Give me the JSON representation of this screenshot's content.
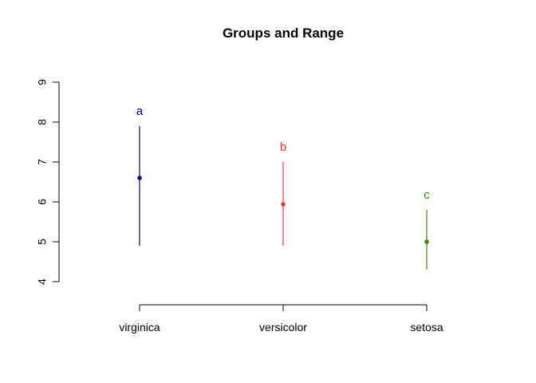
{
  "chart_data": {
    "type": "scatter",
    "title": "Groups and Range",
    "xlabel": "",
    "ylabel": "",
    "categories": [
      "virginica",
      "versicolor",
      "setosa"
    ],
    "ylim": [
      4,
      9
    ],
    "yticks": [
      4,
      5,
      6,
      7,
      8,
      9
    ],
    "grid": false,
    "legend": "none",
    "groups": [
      {
        "category": "virginica",
        "mean": 6.6,
        "min": 4.9,
        "max": 7.9,
        "letter": "a",
        "color": "#000080"
      },
      {
        "category": "versicolor",
        "mean": 5.94,
        "min": 4.9,
        "max": 7.0,
        "letter": "b",
        "color": "#e8383d"
      },
      {
        "category": "setosa",
        "mean": 5.0,
        "min": 4.3,
        "max": 5.8,
        "letter": "c",
        "color": "#3a8a00"
      }
    ]
  }
}
